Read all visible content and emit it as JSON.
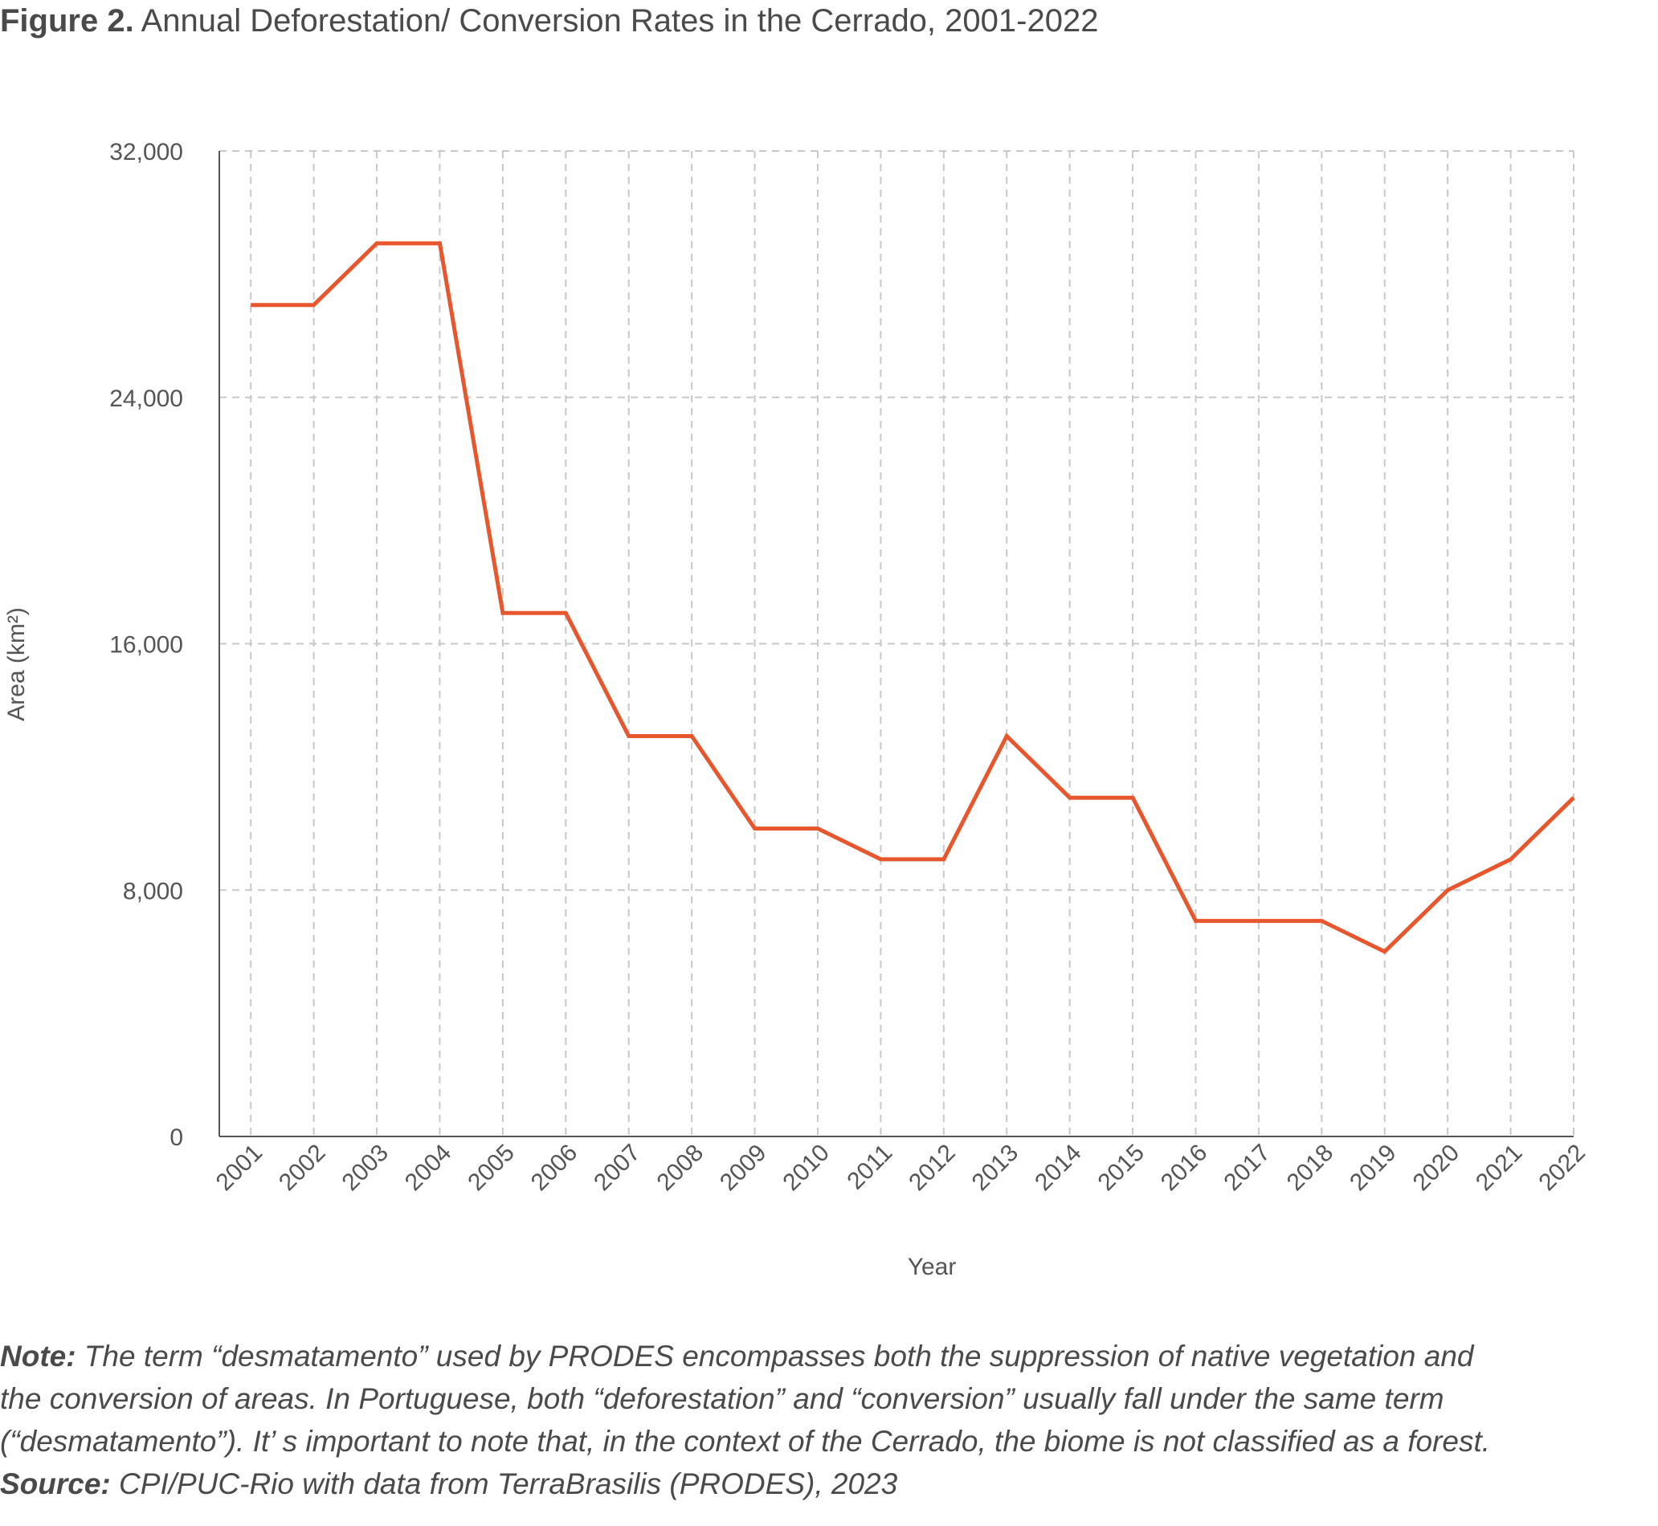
{
  "figure": {
    "label": "Figure 2.",
    "caption": "Annual Deforestation/ Conversion Rates in the Cerrado, 2001-2022"
  },
  "note": {
    "label": "Note:",
    "lines": [
      "The term “desmatamento” used by PRODES encompasses both the suppression of native vegetation and",
      "the conversion of areas. In Portuguese, both “deforestation” and “conversion” usually fall under the same term",
      "(“desmatamento”). It’  s important to note that, in the context of the Cerrado, the biome is not classified as a forest."
    ]
  },
  "source": {
    "label": "Source:",
    "text": "CPI/PUC-Rio with data from TerraBrasilis (PRODES), 2023"
  },
  "chart_data": {
    "type": "line",
    "xlabel": "Year",
    "ylabel": "Area (km²)",
    "ylim": [
      0,
      32000
    ],
    "yticks": [
      0,
      8000,
      16000,
      24000,
      32000
    ],
    "ytick_labels": [
      "0",
      "8,000",
      "16,000",
      "24,000",
      "32,000"
    ],
    "grid": true,
    "color": "#e8562d",
    "x": [
      "2001",
      "2002",
      "2003",
      "2004",
      "2005",
      "2006",
      "2007",
      "2008",
      "2009",
      "2010",
      "2011",
      "2012",
      "2013",
      "2014",
      "2015",
      "2016",
      "2017",
      "2018",
      "2019",
      "2020",
      "2021",
      "2022"
    ],
    "values": [
      27000,
      27000,
      29000,
      29000,
      17000,
      17000,
      13000,
      13000,
      10000,
      10000,
      9000,
      9000,
      13000,
      11000,
      11000,
      7000,
      7000,
      7000,
      6000,
      8000,
      9000,
      11000
    ]
  }
}
